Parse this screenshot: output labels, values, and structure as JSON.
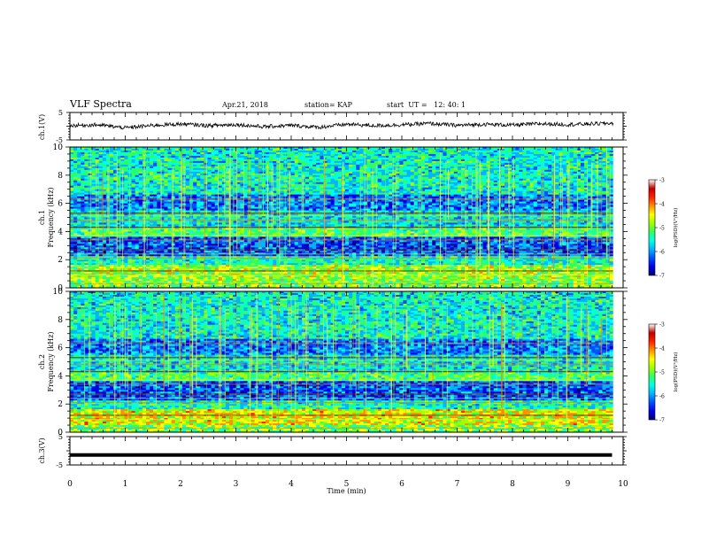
{
  "header": {
    "title": "VLF Spectra",
    "date": "Apr.21, 2018",
    "station": "station= KAP",
    "start": "start  UT =   12: 40: 1"
  },
  "chart_data": [
    {
      "type": "line",
      "panel": "ch1-waveform",
      "ylabel": "ch.1(V)",
      "ylim": [
        -5,
        5
      ],
      "yticks": [
        "5",
        "-5"
      ],
      "xlim": [
        0,
        10
      ],
      "note": "noisy waveform fluctuating roughly between -1 and 1.5 V across 0–9.8 min",
      "x": [
        0,
        0.5,
        1,
        1.5,
        2,
        2.5,
        3,
        3.5,
        4,
        4.5,
        5,
        5.5,
        6,
        6.5,
        7,
        7.5,
        8,
        8.5,
        9,
        9.5,
        9.8
      ],
      "y": [
        0.2,
        0.5,
        -0.6,
        0.3,
        0.8,
        0.2,
        0.6,
        -0.2,
        0.3,
        -0.4,
        0.7,
        0.2,
        0.5,
        1.0,
        0.3,
        0.7,
        0.4,
        0.9,
        0.6,
        0.9,
        1.1
      ]
    },
    {
      "type": "heatmap",
      "panel": "ch1-spectrogram",
      "ylabel": "ch.1\nFrequency (kHz)",
      "ylim": [
        0,
        10
      ],
      "yticks": [
        "0",
        "2",
        "4",
        "6",
        "8",
        "10"
      ],
      "xlim": [
        0,
        10
      ],
      "colorbar": {
        "label": "log(PSD)(V²/Hz)",
        "range": [
          -7,
          -3
        ],
        "ticks": [
          "-3",
          "-4",
          "-5",
          "-6",
          "-7"
        ]
      }
    },
    {
      "type": "heatmap",
      "panel": "ch2-spectrogram",
      "ylabel": "ch.2\nFrequency (kHz)",
      "ylim": [
        0,
        10
      ],
      "yticks": [
        "0",
        "2",
        "4",
        "6",
        "8",
        "10"
      ],
      "xlim": [
        0,
        10
      ],
      "colorbar": {
        "label": "log(PSD)(V²/Hz)",
        "range": [
          -7,
          -3
        ],
        "ticks": [
          "-3",
          "-4",
          "-5",
          "-6",
          "-7"
        ]
      }
    },
    {
      "type": "line",
      "panel": "ch3-waveform",
      "ylabel": "ch.3(V)",
      "ylim": [
        -5,
        5
      ],
      "yticks": [
        "5",
        "-5"
      ],
      "xlim": [
        0,
        10
      ],
      "x": [
        0,
        9.8
      ],
      "y": [
        -1.5,
        -1.5
      ]
    }
  ],
  "xaxis": {
    "label": "Time (min)",
    "ticks": [
      "0",
      "1",
      "2",
      "3",
      "4",
      "5",
      "6",
      "7",
      "8",
      "9",
      "10"
    ]
  },
  "colors": {
    "background": "#ffffff",
    "axis": "#000000",
    "trace": "#000000",
    "colormap": [
      "#00008b",
      "#0000ff",
      "#00bfff",
      "#00ffd0",
      "#40ff40",
      "#c8ff00",
      "#ffff00",
      "#ff8000",
      "#ff0000",
      "#ffffff"
    ]
  }
}
